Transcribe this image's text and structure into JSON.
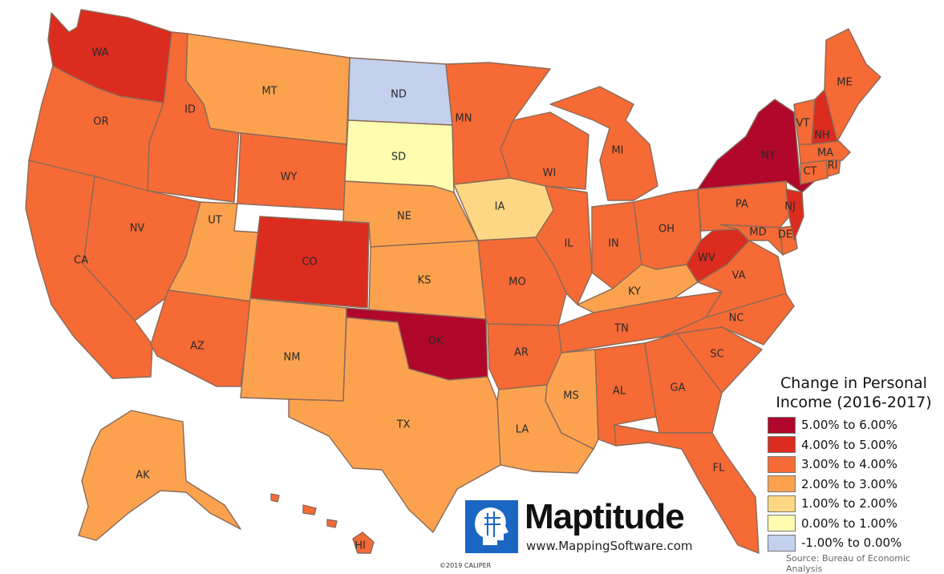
{
  "map": {
    "legend_title": [
      "Change in Personal",
      "Income (2016-2017)"
    ],
    "legend": [
      {
        "label": "5.00% to 6.00%",
        "color": "#b0072a"
      },
      {
        "label": "4.00% to 5.00%",
        "color": "#dc2b1f"
      },
      {
        "label": "3.00% to 4.00%",
        "color": "#f66a35"
      },
      {
        "label": "2.00% to 3.00%",
        "color": "#fca24f"
      },
      {
        "label": "1.00% to 2.00%",
        "color": "#fdd783"
      },
      {
        "label": "0.00% to 1.00%",
        "color": "#fefcae"
      },
      {
        "label": "-1.00% to 0.00%",
        "color": "#c3d0ee"
      }
    ],
    "states": [
      {
        "abbr": "WA",
        "class": 1
      },
      {
        "abbr": "OR",
        "class": 2
      },
      {
        "abbr": "CA",
        "class": 2
      },
      {
        "abbr": "ID",
        "class": 2
      },
      {
        "abbr": "NV",
        "class": 2
      },
      {
        "abbr": "MT",
        "class": 3
      },
      {
        "abbr": "WY",
        "class": 2
      },
      {
        "abbr": "UT",
        "class": 3
      },
      {
        "abbr": "AZ",
        "class": 2
      },
      {
        "abbr": "CO",
        "class": 1
      },
      {
        "abbr": "NM",
        "class": 3
      },
      {
        "abbr": "ND",
        "class": 6
      },
      {
        "abbr": "SD",
        "class": 5
      },
      {
        "abbr": "NE",
        "class": 3
      },
      {
        "abbr": "KS",
        "class": 3
      },
      {
        "abbr": "OK",
        "class": 0
      },
      {
        "abbr": "TX",
        "class": 3
      },
      {
        "abbr": "MN",
        "class": 2
      },
      {
        "abbr": "IA",
        "class": 4
      },
      {
        "abbr": "MO",
        "class": 2
      },
      {
        "abbr": "AR",
        "class": 2
      },
      {
        "abbr": "LA",
        "class": 3
      },
      {
        "abbr": "WI",
        "class": 2
      },
      {
        "abbr": "IL",
        "class": 2
      },
      {
        "abbr": "MI",
        "class": 2
      },
      {
        "abbr": "IN",
        "class": 2
      },
      {
        "abbr": "OH",
        "class": 2
      },
      {
        "abbr": "KY",
        "class": 3
      },
      {
        "abbr": "TN",
        "class": 2
      },
      {
        "abbr": "MS",
        "class": 3
      },
      {
        "abbr": "AL",
        "class": 2
      },
      {
        "abbr": "GA",
        "class": 2
      },
      {
        "abbr": "FL",
        "class": 2
      },
      {
        "abbr": "SC",
        "class": 2
      },
      {
        "abbr": "NC",
        "class": 2
      },
      {
        "abbr": "VA",
        "class": 2
      },
      {
        "abbr": "WV",
        "class": 1
      },
      {
        "abbr": "PA",
        "class": 2
      },
      {
        "abbr": "NY",
        "class": 0
      },
      {
        "abbr": "VT",
        "class": 2
      },
      {
        "abbr": "NH",
        "class": 1
      },
      {
        "abbr": "ME",
        "class": 2
      },
      {
        "abbr": "MA",
        "class": 2
      },
      {
        "abbr": "RI",
        "class": 2
      },
      {
        "abbr": "CT",
        "class": 2
      },
      {
        "abbr": "NJ",
        "class": 1
      },
      {
        "abbr": "DE",
        "class": 2
      },
      {
        "abbr": "MD",
        "class": 2
      },
      {
        "abbr": "AK",
        "class": 3
      },
      {
        "abbr": "HI",
        "class": 2
      }
    ]
  },
  "source": "Source: Bureau of Economic Analysis",
  "copyright": "©2019 CALIPER",
  "logo": {
    "name": "Maptitude",
    "url": "www.MappingSoftware.com",
    "icon": "maptitude-head-icon"
  }
}
